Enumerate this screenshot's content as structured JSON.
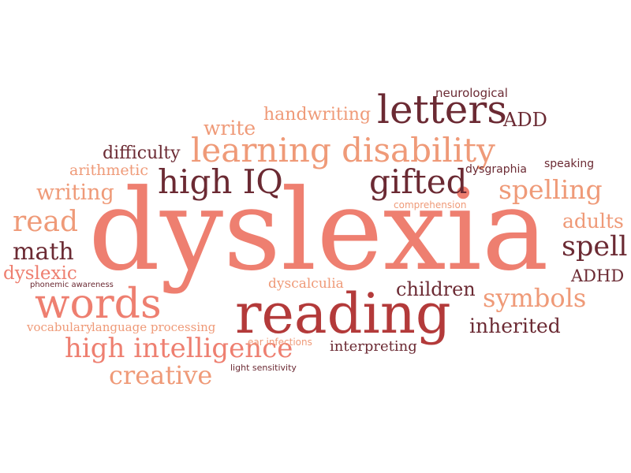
{
  "palette": {
    "salmon": "#ee7f70",
    "peach": "#ef9a78",
    "maroon": "#7b1f2b",
    "brown": "#6b2a33",
    "red": "#b33a3a"
  },
  "words": [
    {
      "id": "dyslexia",
      "text": "dyslexia",
      "color": "salmon"
    },
    {
      "id": "reading",
      "text": "reading",
      "color": "red"
    },
    {
      "id": "learning-disability",
      "text": "learning disability",
      "color": "peach"
    },
    {
      "id": "letters",
      "text": "letters",
      "color": "brown"
    },
    {
      "id": "words",
      "text": "words",
      "color": "salmon"
    },
    {
      "id": "high-iq",
      "text": "high IQ",
      "color": "brown"
    },
    {
      "id": "gifted",
      "text": "gifted",
      "color": "brown"
    },
    {
      "id": "high-intelligence",
      "text": "high intelligence",
      "color": "salmon"
    },
    {
      "id": "symbols",
      "text": "symbols",
      "color": "peach"
    },
    {
      "id": "spelling",
      "text": "spelling",
      "color": "peach"
    },
    {
      "id": "creative",
      "text": "creative",
      "color": "peach"
    },
    {
      "id": "read",
      "text": "read",
      "color": "peach"
    },
    {
      "id": "spell",
      "text": "spell",
      "color": "brown"
    },
    {
      "id": "math",
      "text": "math",
      "color": "brown"
    },
    {
      "id": "writing",
      "text": "writing",
      "color": "peach"
    },
    {
      "id": "write",
      "text": "write",
      "color": "peach"
    },
    {
      "id": "handwriting",
      "text": "handwriting",
      "color": "peach"
    },
    {
      "id": "inherited",
      "text": "inherited",
      "color": "brown"
    },
    {
      "id": "children",
      "text": "children",
      "color": "brown"
    },
    {
      "id": "dyslexic",
      "text": "dyslexic",
      "color": "salmon"
    },
    {
      "id": "adults",
      "text": "adults",
      "color": "peach"
    },
    {
      "id": "add",
      "text": "ADD",
      "color": "brown"
    },
    {
      "id": "adhd",
      "text": "ADHD",
      "color": "brown"
    },
    {
      "id": "difficulty",
      "text": "difficulty",
      "color": "brown"
    },
    {
      "id": "arithmetic",
      "text": "arithmetic",
      "color": "peach"
    },
    {
      "id": "interpreting",
      "text": "interpreting",
      "color": "brown"
    },
    {
      "id": "vocabulary",
      "text": "vocabulary",
      "color": "peach"
    },
    {
      "id": "language-processing",
      "text": "language processing",
      "color": "peach"
    },
    {
      "id": "dyscalculia",
      "text": "dyscalculia",
      "color": "peach"
    },
    {
      "id": "dysgraphia",
      "text": "dysgraphia",
      "color": "brown"
    },
    {
      "id": "speaking",
      "text": "speaking",
      "color": "brown"
    },
    {
      "id": "neurological",
      "text": "neurological",
      "color": "brown"
    },
    {
      "id": "comprehension",
      "text": "comprehension",
      "color": "peach"
    },
    {
      "id": "ear-infections",
      "text": "ear infections",
      "color": "peach"
    },
    {
      "id": "phonemic-awareness",
      "text": "phonemic awareness",
      "color": "brown"
    },
    {
      "id": "light-sensitivity",
      "text": "light sensitivity",
      "color": "brown"
    }
  ]
}
